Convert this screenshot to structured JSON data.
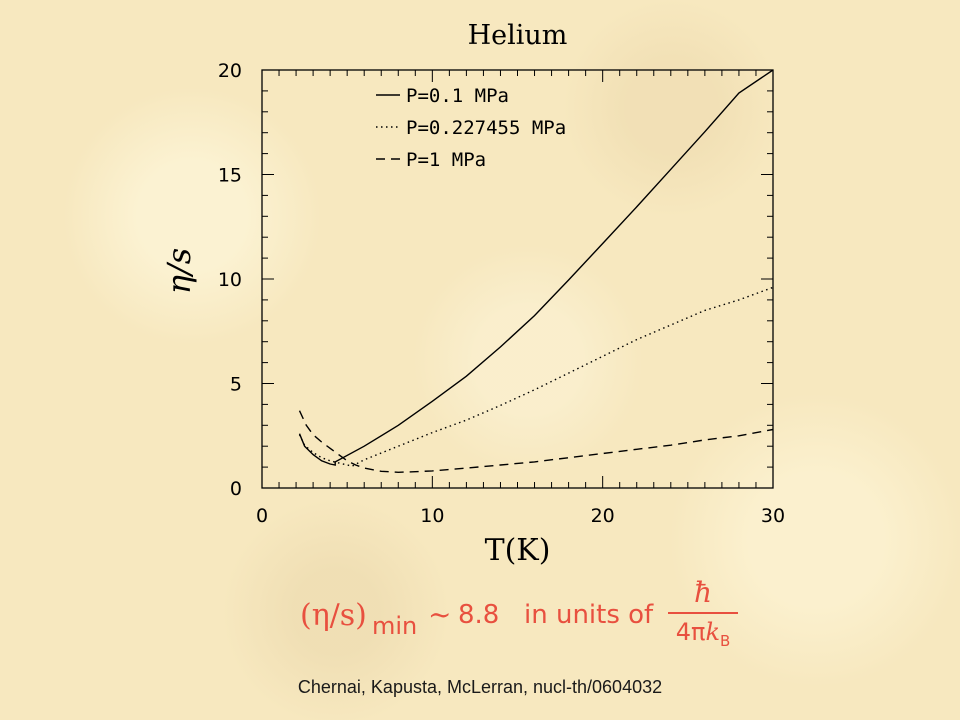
{
  "chart_data": {
    "type": "line",
    "title": "Helium",
    "xlabel": "T(K)",
    "ylabel": "η/s",
    "xlim": [
      0,
      30
    ],
    "ylim": [
      0,
      20
    ],
    "xticks": [
      0,
      10,
      20,
      30
    ],
    "yticks": [
      0,
      5,
      10,
      15,
      20
    ],
    "grid": false,
    "legend_position": "top-left",
    "series": [
      {
        "name": "P=0.1 MPa",
        "line_style": "solid",
        "points": [
          [
            2.2,
            2.6
          ],
          [
            2.5,
            2.0
          ],
          [
            3.0,
            1.6
          ],
          [
            3.5,
            1.3
          ],
          [
            4.0,
            1.15
          ],
          [
            4.3,
            1.1
          ],
          [
            4.3,
            1.25
          ],
          [
            6,
            2.0
          ],
          [
            8,
            3.0
          ],
          [
            10,
            4.15
          ],
          [
            12,
            5.35
          ],
          [
            14,
            6.75
          ],
          [
            16,
            8.25
          ],
          [
            18,
            9.95
          ],
          [
            20,
            11.7
          ],
          [
            22,
            13.45
          ],
          [
            24,
            15.25
          ],
          [
            26,
            17.05
          ],
          [
            28,
            18.9
          ],
          [
            30,
            20.0
          ]
        ]
      },
      {
        "name": "P=0.227455 MPa",
        "line_style": "dotted",
        "points": [
          [
            2.2,
            2.55
          ],
          [
            2.5,
            2.05
          ],
          [
            3.0,
            1.7
          ],
          [
            3.5,
            1.45
          ],
          [
            4.0,
            1.3
          ],
          [
            4.5,
            1.2
          ],
          [
            5.0,
            1.1
          ],
          [
            5.3,
            1.05
          ],
          [
            6,
            1.35
          ],
          [
            8,
            2.0
          ],
          [
            10,
            2.65
          ],
          [
            12,
            3.25
          ],
          [
            14,
            3.95
          ],
          [
            16,
            4.7
          ],
          [
            18,
            5.5
          ],
          [
            20,
            6.3
          ],
          [
            22,
            7.1
          ],
          [
            24,
            7.8
          ],
          [
            26,
            8.5
          ],
          [
            28,
            9.0
          ],
          [
            30,
            9.6
          ]
        ]
      },
      {
        "name": "P=1 MPa",
        "line_style": "dashed",
        "points": [
          [
            2.2,
            3.7
          ],
          [
            2.6,
            3.0
          ],
          [
            3.0,
            2.55
          ],
          [
            3.5,
            2.2
          ],
          [
            4.0,
            1.9
          ],
          [
            4.5,
            1.6
          ],
          [
            5.0,
            1.3
          ],
          [
            5.5,
            1.1
          ],
          [
            6,
            0.95
          ],
          [
            7,
            0.8
          ],
          [
            8,
            0.75
          ],
          [
            9,
            0.78
          ],
          [
            10,
            0.82
          ],
          [
            12,
            0.95
          ],
          [
            14,
            1.1
          ],
          [
            16,
            1.25
          ],
          [
            18,
            1.45
          ],
          [
            20,
            1.65
          ],
          [
            22,
            1.85
          ],
          [
            24,
            2.05
          ],
          [
            26,
            2.3
          ],
          [
            28,
            2.5
          ],
          [
            30,
            2.8
          ]
        ]
      }
    ]
  },
  "formula": {
    "lhs": "(η/s)",
    "subscript": "min",
    "relation": "~",
    "value": "8.8",
    "text": "in units of",
    "numerator": "ħ",
    "denominator_prefix": "4π",
    "denominator_var": "k",
    "denominator_sub": "B",
    "color": "#e8503f"
  },
  "citation": "Chernai, Kapusta, McLerran, nucl-th/0604032"
}
